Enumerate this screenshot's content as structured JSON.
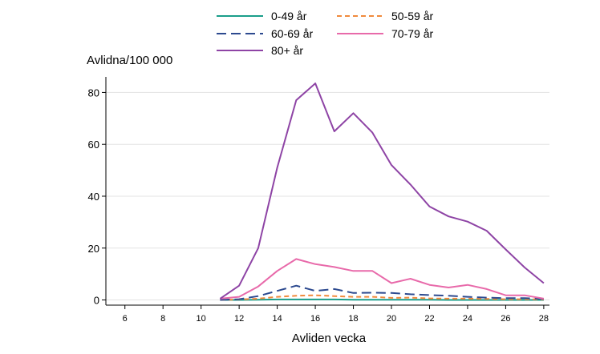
{
  "chart_data": {
    "type": "line",
    "title": "",
    "ylabel": "Avlidna/100 000",
    "xlabel": "Avliden vecka",
    "xlim": [
      5,
      28.3
    ],
    "ylim": [
      -2,
      86
    ],
    "x_ticks": [
      6,
      8,
      10,
      12,
      14,
      16,
      18,
      20,
      22,
      24,
      26,
      28
    ],
    "y_ticks": [
      0,
      20,
      40,
      60,
      80
    ],
    "grid": "horizontal",
    "legend_position": "top",
    "x": [
      11,
      12,
      13,
      14,
      15,
      16,
      17,
      18,
      19,
      20,
      21,
      22,
      23,
      24,
      25,
      26,
      27,
      28
    ],
    "series": [
      {
        "name": "0-49 år",
        "color": "#1a9e8a",
        "dash": "solid",
        "values": [
          0,
          0,
          0.1,
          0.2,
          0.2,
          0.2,
          0.2,
          0.1,
          0.1,
          0.1,
          0.1,
          0.1,
          0,
          0,
          0,
          0,
          0,
          0
        ]
      },
      {
        "name": "50-59 år",
        "color": "#f08a3c",
        "dash": "short",
        "values": [
          0,
          0.2,
          0.5,
          1.2,
          1.6,
          1.8,
          1.5,
          1.2,
          1.2,
          0.8,
          0.9,
          0.6,
          0.5,
          0.5,
          0.4,
          0.3,
          0.3,
          0.2
        ]
      },
      {
        "name": "60-69 år",
        "color": "#2d4a8f",
        "dash": "long",
        "values": [
          0,
          0.3,
          1.5,
          3.5,
          5.5,
          3.5,
          4.2,
          2.7,
          2.8,
          2.7,
          2.2,
          1.9,
          1.6,
          1.2,
          0.9,
          0.7,
          0.7,
          0.4
        ]
      },
      {
        "name": "70-79 år",
        "color": "#e86aaa",
        "dash": "solid",
        "values": [
          0.5,
          1.2,
          5.2,
          11.2,
          15.8,
          13.8,
          12.7,
          11.2,
          11.2,
          6.5,
          8.2,
          5.8,
          4.8,
          5.8,
          4.2,
          1.8,
          1.8,
          0.5
        ]
      },
      {
        "name": "80+ år",
        "color": "#8e44a5",
        "dash": "solid",
        "values": [
          0.5,
          5.5,
          20,
          51,
          77,
          83.5,
          65,
          72,
          64.5,
          52,
          44.5,
          36,
          32.2,
          30.2,
          26.7,
          19.5,
          12.5,
          6.5
        ]
      }
    ]
  }
}
